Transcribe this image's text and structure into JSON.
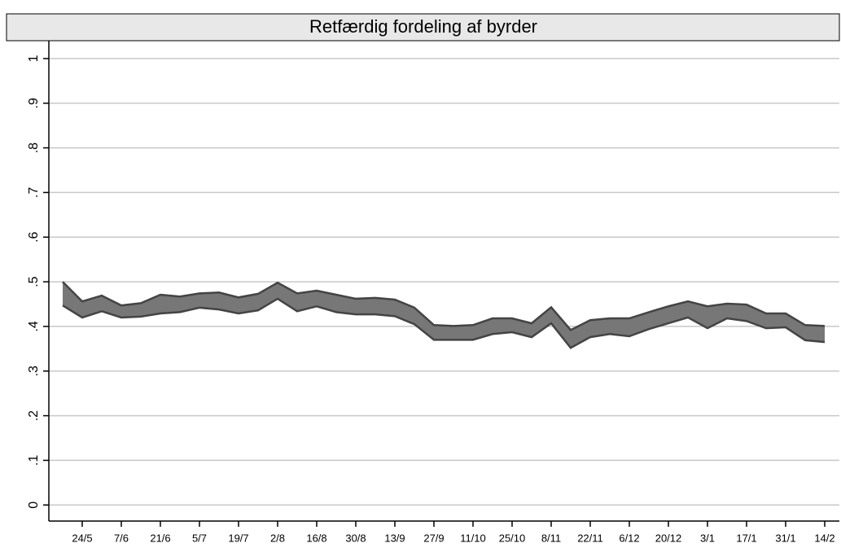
{
  "chart_data": {
    "type": "band",
    "title": "Retfærdig fordeling af byrder",
    "categories": [
      null,
      "24/5",
      null,
      "7/6",
      null,
      "21/6",
      null,
      "5/7",
      null,
      "19/7",
      null,
      "2/8",
      null,
      "16/8",
      null,
      "30/8",
      null,
      "13/9",
      null,
      "27/9",
      null,
      "11/10",
      null,
      "25/10",
      null,
      "8/11",
      null,
      "22/11",
      null,
      "6/12",
      null,
      "20/12",
      null,
      "3/1",
      null,
      "17/1",
      null,
      "31/1",
      null,
      "14/2"
    ],
    "series": [
      {
        "color": "#444444",
        "values": [
          0.5,
          0.456,
          0.469,
          0.447,
          0.452,
          0.471,
          0.467,
          0.474,
          0.476,
          0.465,
          0.473,
          0.498,
          0.474,
          0.48,
          0.471,
          0.462,
          0.464,
          0.46,
          0.442,
          0.403,
          0.401,
          0.403,
          0.418,
          0.418,
          0.407,
          0.443,
          0.392,
          0.414,
          0.418,
          0.418,
          0.432,
          0.445,
          0.456,
          0.445,
          0.451,
          0.449,
          0.429,
          0.429,
          0.403,
          0.401
        ]
      },
      {
        "color": "#444444",
        "values": [
          0.447,
          0.42,
          0.434,
          0.42,
          0.422,
          0.429,
          0.432,
          0.442,
          0.438,
          0.429,
          0.436,
          0.462,
          0.434,
          0.445,
          0.432,
          0.427,
          0.427,
          0.423,
          0.405,
          0.37,
          0.37,
          0.37,
          0.383,
          0.387,
          0.376,
          0.407,
          0.352,
          0.376,
          0.383,
          0.378,
          0.394,
          0.407,
          0.42,
          0.396,
          0.418,
          0.412,
          0.396,
          0.398,
          0.369,
          0.365
        ]
      }
    ],
    "band_fill": "#777777",
    "ylim": [
      -0.036,
      1.04
    ],
    "yticks": [
      0,
      {
        "value": 0.1,
        "label": ".1"
      },
      {
        "value": 0.2,
        "label": ".2"
      },
      {
        "value": 0.3,
        "label": ".3"
      },
      {
        "value": 0.4,
        "label": ".4"
      },
      {
        "value": 0.5,
        "label": ".5"
      },
      {
        "value": 0.6,
        "label": ".6"
      },
      {
        "value": 0.7,
        "label": ".7"
      },
      {
        "value": 0.8,
        "label": ".8"
      },
      {
        "value": 0.9,
        "label": ".9"
      },
      1
    ],
    "grid": true
  }
}
